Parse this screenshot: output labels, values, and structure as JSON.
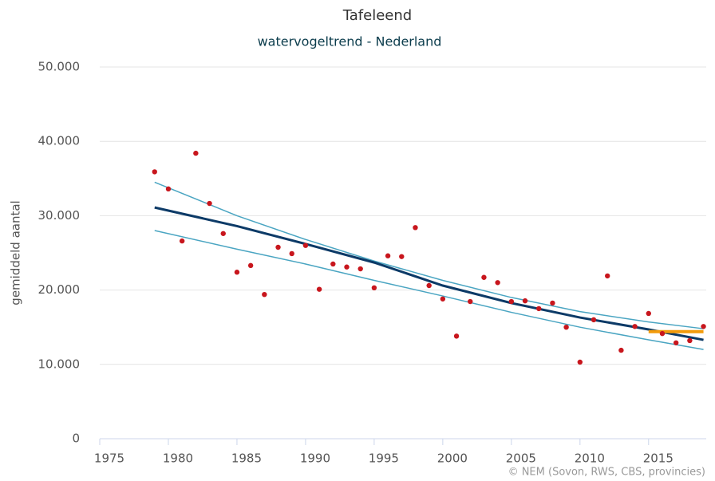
{
  "chart_data": {
    "type": "scatter",
    "title": "Tafeleend",
    "subtitle": "watervogeltrend - Nederland",
    "y_label": "gemiddeld aantal",
    "credit": "© NEM (Sovon, RWS, CBS, provincies)",
    "xlim": [
      1975,
      2019.2
    ],
    "xticks": [
      1975,
      1980,
      1985,
      1990,
      1995,
      2000,
      2005,
      2010,
      2015
    ],
    "ylim": [
      0,
      50000
    ],
    "yticks": [
      0,
      {
        "value": 10000,
        "label": "10.000"
      },
      {
        "value": 20000,
        "label": "20.000"
      },
      {
        "value": 30000,
        "label": "30.000"
      },
      {
        "value": 40000,
        "label": "40.000"
      },
      {
        "value": 50000,
        "label": "50.000"
      }
    ],
    "grid": true,
    "color": "#c8161d",
    "x": [
      1979,
      1980,
      1981,
      1982,
      1983,
      1984,
      1985,
      1986,
      1987,
      1988,
      1989,
      1990,
      1991,
      1992,
      1993,
      1994,
      1995,
      1996,
      1997,
      1998,
      1999,
      2000,
      2001,
      2002,
      2003,
      2004,
      2005,
      2006,
      2007,
      2008,
      2009,
      2010,
      2011,
      2012,
      2013,
      2014,
      2015,
      2016,
      2017,
      2018,
      2019
    ],
    "values": [
      35900,
      33600,
      26600,
      38400,
      31650,
      27600,
      22400,
      23300,
      19400,
      25750,
      24900,
      26000,
      20100,
      23500,
      23100,
      22850,
      20300,
      24600,
      24500,
      28400,
      20600,
      18800,
      13800,
      18450,
      21700,
      21000,
      18450,
      18550,
      17500,
      18250,
      15000,
      10300,
      16000,
      21900,
      11900,
      15100,
      16850,
      14150,
      12900,
      13200,
      15100
    ],
    "series": [
      {
        "color": "#4aa5c2",
        "width": 1.5,
        "x": [
          1979,
          1985,
          1990,
          1995,
          2000,
          2005,
          2010,
          2015,
          2019
        ],
        "values": [
          34500,
          30000,
          26800,
          23900,
          21300,
          19000,
          17100,
          15700,
          14800
        ]
      },
      {
        "color": "#4aa5c2",
        "width": 1.5,
        "x": [
          1979,
          1985,
          1990,
          1995,
          2000,
          2005,
          2010,
          2015,
          2019
        ],
        "values": [
          28000,
          25500,
          23500,
          21300,
          19200,
          17000,
          15000,
          13300,
          12000
        ]
      },
      {
        "color": "#0c3a67",
        "width": 3,
        "x": [
          1979,
          1985,
          1990,
          1995,
          2000,
          2005,
          2010,
          2015,
          2019
        ],
        "values": [
          31100,
          28600,
          26200,
          23700,
          20600,
          18250,
          16300,
          14700,
          13300
        ]
      },
      {
        "color": "#f29b0c",
        "width": 4,
        "x": [
          2015,
          2019
        ],
        "values": [
          14400,
          14400
        ]
      }
    ]
  }
}
